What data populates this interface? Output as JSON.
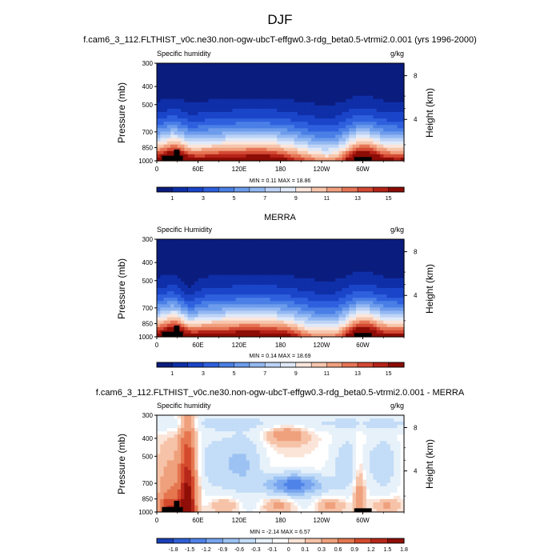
{
  "figure": {
    "title": "DJF",
    "colors": {
      "humidity": [
        "#0a1c7d",
        "#0f2fa8",
        "#1a45c9",
        "#2e60de",
        "#4a7fe6",
        "#6d9cec",
        "#93b8f2",
        "#bcd3f6",
        "#e0e9f8",
        "#fbe6dc",
        "#f7c6ad",
        "#f1a07f",
        "#e67556",
        "#d44a34",
        "#b52318",
        "#8c0c06"
      ],
      "difference": [
        "#1a3fb8",
        "#2f5fd6",
        "#4f83e8",
        "#76a4ef",
        "#9cc2f3",
        "#c3dcf7",
        "#e7f1fa",
        "#ffffff",
        "#fbe4d8",
        "#f6c3a8",
        "#efa07c",
        "#e5764f",
        "#d44a2d",
        "#b8281a",
        "#8f0f08"
      ],
      "land": "#000000"
    }
  },
  "chart_data": [
    {
      "type": "heatmap",
      "id": "model",
      "title": "f.cam6_3_112.FLTHIST_v0c.ne30.non-ogw-ubcT-effgw0.3-rdg_beta0.5-vtrmi2.0.001 (yrs 1996-2000)",
      "left_label": "Specific humidity",
      "right_label": "g/kg",
      "ylabel": "Pressure (mb)",
      "ylabel_right": "Height (km)",
      "xlim": [
        0,
        360
      ],
      "x_ticks": [
        {
          "v": 0,
          "l": "0"
        },
        {
          "v": 60,
          "l": "60E"
        },
        {
          "v": 120,
          "l": "120E"
        },
        {
          "v": 180,
          "l": "180"
        },
        {
          "v": 240,
          "l": "120W"
        },
        {
          "v": 300,
          "l": "60W"
        }
      ],
      "y_ticks": [
        {
          "p": 300,
          "l": "300"
        },
        {
          "p": 400,
          "l": "400"
        },
        {
          "p": 500,
          "l": "500"
        },
        {
          "p": 700,
          "l": "700"
        },
        {
          "p": 850,
          "l": "850"
        },
        {
          "p": 1000,
          "l": "1000"
        }
      ],
      "height_ticks": [
        {
          "p": 600,
          "l": "4"
        },
        {
          "p": 350,
          "l": "8"
        }
      ],
      "stats": "MIN =   0.11  MAX =  18.86",
      "min": 0.11,
      "max": 18.86,
      "colorbar_labels": [
        "1",
        "3",
        "5",
        "7",
        "9",
        "11",
        "13",
        "15"
      ],
      "levels": [
        0,
        1,
        2,
        3,
        4,
        5,
        6,
        7,
        8,
        9,
        10,
        11,
        12,
        13,
        14,
        15
      ]
    },
    {
      "type": "heatmap",
      "id": "obs",
      "title": "MERRA",
      "left_label": "Specific Humidity",
      "right_label": "g/kg",
      "ylabel": "Pressure (mb)",
      "ylabel_right": "Height (km)",
      "xlim": [
        0,
        360
      ],
      "x_ticks": [
        {
          "v": 0,
          "l": "0"
        },
        {
          "v": 60,
          "l": "60E"
        },
        {
          "v": 120,
          "l": "120E"
        },
        {
          "v": 180,
          "l": "180"
        },
        {
          "v": 240,
          "l": "120W"
        },
        {
          "v": 300,
          "l": "60W"
        }
      ],
      "y_ticks": [
        {
          "p": 300,
          "l": "300"
        },
        {
          "p": 400,
          "l": "400"
        },
        {
          "p": 500,
          "l": "500"
        },
        {
          "p": 700,
          "l": "700"
        },
        {
          "p": 850,
          "l": "850"
        },
        {
          "p": 1000,
          "l": "1000"
        }
      ],
      "height_ticks": [
        {
          "p": 600,
          "l": "4"
        },
        {
          "p": 350,
          "l": "8"
        }
      ],
      "stats": "MIN =   0.14  MAX =  18.69",
      "min": 0.14,
      "max": 18.69,
      "colorbar_labels": [
        "1",
        "3",
        "5",
        "7",
        "9",
        "11",
        "13",
        "15"
      ],
      "levels": [
        0,
        1,
        2,
        3,
        4,
        5,
        6,
        7,
        8,
        9,
        10,
        11,
        12,
        13,
        14,
        15
      ]
    },
    {
      "type": "heatmap",
      "id": "diff",
      "title": "f.cam6_3_112.FLTHIST_v0c.ne30.non-ogw-ubcT-effgw0.3-rdg_beta0.5-vtrmi2.0.001 - MERRA",
      "left_label": "Specific humidity",
      "right_label": "g/kg",
      "ylabel": "Pressure (mb)",
      "ylabel_right": "Height (km)",
      "xlim": [
        0,
        360
      ],
      "x_ticks": [
        {
          "v": 0,
          "l": "0"
        },
        {
          "v": 60,
          "l": "60E"
        },
        {
          "v": 120,
          "l": "120E"
        },
        {
          "v": 180,
          "l": "180"
        },
        {
          "v": 240,
          "l": "120W"
        },
        {
          "v": 300,
          "l": "60W"
        }
      ],
      "y_ticks": [
        {
          "p": 300,
          "l": "300"
        },
        {
          "p": 400,
          "l": "400"
        },
        {
          "p": 500,
          "l": "500"
        },
        {
          "p": 700,
          "l": "700"
        },
        {
          "p": 850,
          "l": "850"
        },
        {
          "p": 1000,
          "l": "1000"
        }
      ],
      "height_ticks": [
        {
          "p": 600,
          "l": "4"
        },
        {
          "p": 350,
          "l": "8"
        }
      ],
      "stats": "MIN =  -2.14  MAX =   6.57",
      "min": -2.14,
      "max": 6.57,
      "colorbar_labels": [
        "-1.8",
        "-1.5",
        "-1.2",
        "-0.9",
        "-0.6",
        "-0.3",
        "-0.1",
        "0",
        "0.1",
        "0.3",
        "0.6",
        "0.9",
        "1.2",
        "1.5",
        "1.8"
      ],
      "levels": [
        -2.1,
        -1.8,
        -1.5,
        -1.2,
        -0.9,
        -0.6,
        -0.3,
        -0.1,
        0,
        0.1,
        0.3,
        0.6,
        0.9,
        1.2,
        1.5,
        1.8
      ]
    }
  ]
}
